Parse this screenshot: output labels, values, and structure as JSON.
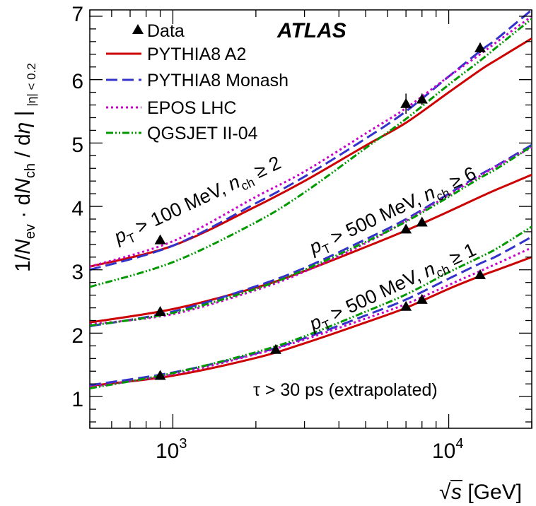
{
  "chart_data": {
    "type": "line",
    "experiment_label": "ATLAS",
    "xlabel": {
      "base": "s",
      "unit": " [GeV]",
      "radical": "√"
    },
    "ylabel": {
      "prefix": "1/",
      "n_ev_sym": "N",
      "n_ev_sub": "ev",
      "mid": " · d",
      "n_ch_sym": "N",
      "n_ch_sub": "ch",
      "slash": " / d",
      "eta_sym": "η",
      "bar": " |",
      "range_sub": "|η| < 0.2"
    },
    "x_scale": "log",
    "xlim": [
      500,
      20000
    ],
    "ylim": [
      0.5,
      7.1
    ],
    "xticks": [
      {
        "value": 1000,
        "base": "10",
        "exp": "3"
      },
      {
        "value": 10000,
        "base": "10",
        "exp": "4"
      }
    ],
    "yticks": [
      "1",
      "2",
      "3",
      "4",
      "5",
      "6",
      "7"
    ],
    "legend_position": "top-left",
    "legend": [
      {
        "label": "Data",
        "style": "marker",
        "color": "#000000"
      },
      {
        "label": "PYTHIA8 A2",
        "style": "solid",
        "color": "#cc0000"
      },
      {
        "label": "PYTHIA8 Monash",
        "style": "longdash",
        "color": "#3333cc"
      },
      {
        "label": "EPOS LHC",
        "style": "dotted",
        "color": "#cc00cc"
      },
      {
        "label": "QGSJET II-04",
        "style": "dashdot",
        "color": "#009900"
      }
    ],
    "annotations": {
      "note": "τ > 30 ps (extrapolated)",
      "regions": [
        {
          "p": "p",
          "p_sub": "T",
          "cut": " > 100 MeV, ",
          "n": "n",
          "n_sub": "ch",
          "rel": " ≥ 2"
        },
        {
          "p": "p",
          "p_sub": "T",
          "cut": " > 500 MeV, ",
          "n": "n",
          "n_sub": "ch",
          "rel": " ≥ 6"
        },
        {
          "p": "p",
          "p_sub": "T",
          "cut": " > 500 MeV, ",
          "n": "n",
          "n_sub": "ch",
          "rel": " ≥ 1"
        }
      ]
    },
    "data_sets": [
      {
        "name": "pT > 100 MeV, nch ≥ 2",
        "points": [
          {
            "x": 900,
            "y": 3.47,
            "err": 0.05
          },
          {
            "x": 7000,
            "y": 5.62,
            "err": 0.16
          },
          {
            "x": 8000,
            "y": 5.69,
            "err": 0.09
          },
          {
            "x": 13000,
            "y": 6.5,
            "err": 0.08
          }
        ]
      },
      {
        "name": "pT > 500 MeV, nch ≥ 6",
        "points": [
          {
            "x": 900,
            "y": 2.34,
            "err": 0.04
          },
          {
            "x": 7000,
            "y": 3.64,
            "err": 0.04
          },
          {
            "x": 8000,
            "y": 3.75,
            "err": 0.04
          }
        ]
      },
      {
        "name": "pT > 500 MeV, nch ≥ 1",
        "points": [
          {
            "x": 900,
            "y": 1.33,
            "err": 0.03
          },
          {
            "x": 2360,
            "y": 1.74,
            "err": 0.03
          },
          {
            "x": 7000,
            "y": 2.42,
            "err": 0.03
          },
          {
            "x": 8000,
            "y": 2.53,
            "err": 0.04
          },
          {
            "x": 13000,
            "y": 2.92,
            "err": 0.04
          }
        ]
      }
    ],
    "series": [
      {
        "name": "PYTHIA8 A2",
        "set": 0,
        "x": [
          500,
          1000,
          2000,
          3000,
          5000,
          7000,
          10000,
          13000,
          15000,
          20000
        ],
        "y": [
          3.05,
          3.38,
          4.0,
          4.4,
          4.96,
          5.32,
          5.8,
          6.15,
          6.32,
          6.65
        ]
      },
      {
        "name": "PYTHIA8 Monash",
        "set": 0,
        "x": [
          500,
          1000,
          2000,
          3000,
          5000,
          7000,
          10000,
          13000,
          15000,
          20000
        ],
        "y": [
          3.0,
          3.38,
          4.05,
          4.47,
          5.07,
          5.5,
          6.05,
          6.45,
          6.65,
          7.1
        ]
      },
      {
        "name": "EPOS LHC",
        "set": 0,
        "x": [
          500,
          1000,
          2000,
          3000,
          5000,
          7000,
          10000,
          13000,
          15000,
          20000
        ],
        "y": [
          3.05,
          3.45,
          4.15,
          4.55,
          5.15,
          5.55,
          6.05,
          6.4,
          6.6,
          7.0
        ]
      },
      {
        "name": "QGSJET II-04",
        "set": 0,
        "x": [
          500,
          1000,
          2000,
          3000,
          5000,
          7000,
          10000,
          13000,
          15000,
          20000
        ],
        "y": [
          2.73,
          3.12,
          3.75,
          4.22,
          4.92,
          5.38,
          5.92,
          6.3,
          6.52,
          6.96
        ]
      },
      {
        "name": "PYTHIA8 A2",
        "set": 1,
        "x": [
          500,
          1000,
          2000,
          3000,
          5000,
          7000,
          10000,
          13000,
          15000,
          20000
        ],
        "y": [
          2.17,
          2.38,
          2.72,
          2.98,
          3.36,
          3.62,
          3.92,
          4.15,
          4.27,
          4.5
        ]
      },
      {
        "name": "PYTHIA8 Monash",
        "set": 1,
        "x": [
          500,
          1000,
          2000,
          3000,
          5000,
          7000,
          10000,
          13000,
          15000,
          20000
        ],
        "y": [
          2.11,
          2.34,
          2.74,
          3.03,
          3.48,
          3.8,
          4.2,
          4.5,
          4.65,
          4.97
        ]
      },
      {
        "name": "EPOS LHC",
        "set": 1,
        "x": [
          500,
          1000,
          2000,
          3000,
          5000,
          7000,
          10000,
          13000,
          15000,
          20000
        ],
        "y": [
          2.14,
          2.3,
          2.68,
          2.97,
          3.42,
          3.77,
          4.18,
          4.48,
          4.64,
          4.93
        ]
      },
      {
        "name": "QGSJET II-04",
        "set": 1,
        "x": [
          500,
          1000,
          2000,
          3000,
          5000,
          7000,
          10000,
          13000,
          15000,
          20000
        ],
        "y": [
          2.12,
          2.32,
          2.7,
          3.0,
          3.44,
          3.76,
          4.15,
          4.45,
          4.6,
          4.95
        ]
      },
      {
        "name": "PYTHIA8 A2",
        "set": 2,
        "x": [
          500,
          1000,
          2000,
          3000,
          5000,
          7000,
          10000,
          13000,
          15000,
          20000
        ],
        "y": [
          1.17,
          1.33,
          1.61,
          1.84,
          2.17,
          2.4,
          2.7,
          2.9,
          3.0,
          3.2
        ]
      },
      {
        "name": "PYTHIA8 Monash",
        "set": 2,
        "x": [
          500,
          1000,
          2000,
          3000,
          5000,
          7000,
          10000,
          13000,
          15000,
          20000
        ],
        "y": [
          1.18,
          1.38,
          1.68,
          1.92,
          2.28,
          2.53,
          2.86,
          3.1,
          3.22,
          3.52
        ]
      },
      {
        "name": "EPOS LHC",
        "set": 2,
        "x": [
          500,
          1000,
          2000,
          3000,
          5000,
          7000,
          10000,
          13000,
          15000,
          20000
        ],
        "y": [
          1.15,
          1.35,
          1.67,
          1.9,
          2.23,
          2.46,
          2.76,
          2.98,
          3.1,
          3.35
        ]
      },
      {
        "name": "QGSJET II-04",
        "set": 2,
        "x": [
          500,
          1000,
          2000,
          3000,
          5000,
          7000,
          10000,
          13000,
          15000,
          20000
        ],
        "y": [
          1.13,
          1.37,
          1.7,
          1.95,
          2.34,
          2.61,
          2.96,
          3.2,
          3.34,
          3.68
        ]
      }
    ]
  }
}
